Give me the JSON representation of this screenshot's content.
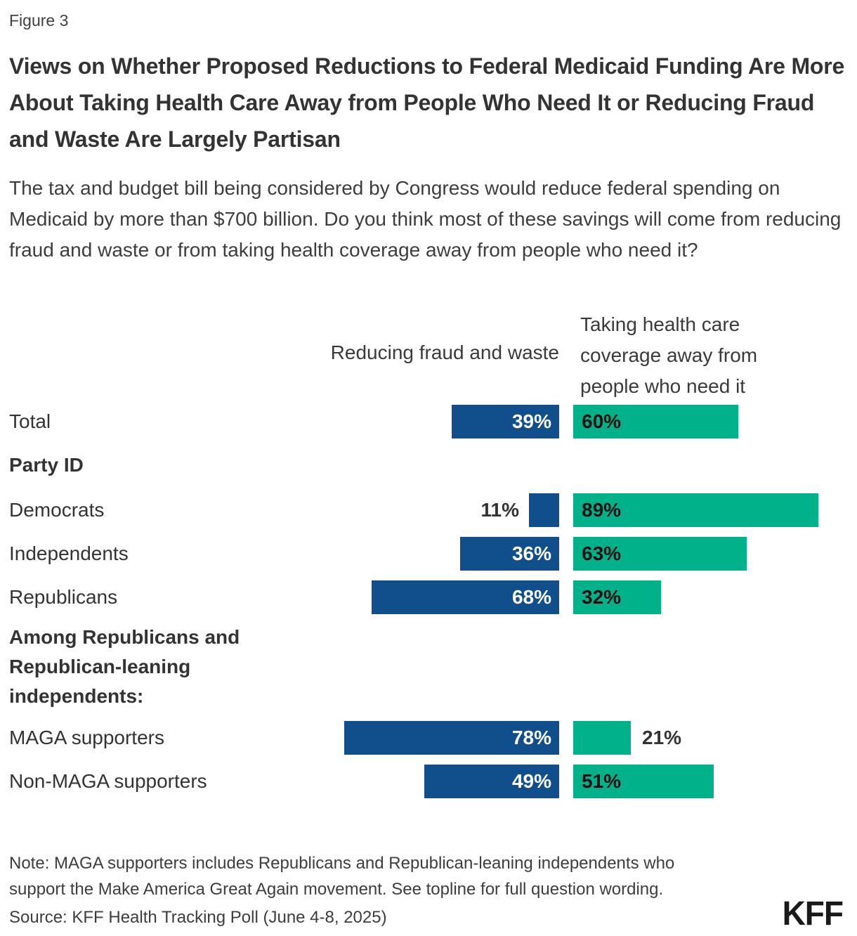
{
  "figure_label": "Figure 3",
  "title": "Views on Whether Proposed Reductions to Federal Medicaid Funding Are More About Taking Health Care Away from People Who Need It or Reducing Fraud and Waste Are Largely Partisan",
  "subtitle": "The tax and budget bill being considered by Congress would reduce federal spending on Medicaid by more than $700 billion. Do you think most of these savings will come from reducing fraud and waste or from taking health coverage away from people who need it?",
  "chart_data": {
    "type": "bar",
    "variant": "horizontal-diverging",
    "unit": "%",
    "legend_position": "top",
    "legend": {
      "left": "Reducing fraud and waste",
      "right": "Taking health care coverage away from people who need it"
    },
    "colors": {
      "fraud": "#114E8C",
      "coverage": "#00B189"
    },
    "sections": [
      {
        "label": "Party ID"
      },
      {
        "label": "Among Republicans and Republican-leaning independents:"
      }
    ],
    "rows": [
      {
        "label": "Total",
        "fraud": 39,
        "coverage": 60,
        "fraud_label": "inside",
        "coverage_label": "inside"
      },
      {
        "label": "Democrats",
        "fraud": 11,
        "coverage": 89,
        "fraud_label": "outside",
        "coverage_label": "inside"
      },
      {
        "label": "Independents",
        "fraud": 36,
        "coverage": 63,
        "fraud_label": "inside",
        "coverage_label": "inside"
      },
      {
        "label": "Republicans",
        "fraud": 68,
        "coverage": 32,
        "fraud_label": "inside",
        "coverage_label": "inside"
      },
      {
        "label": "MAGA supporters",
        "fraud": 78,
        "coverage": 21,
        "fraud_label": "inside",
        "coverage_label": "outside"
      },
      {
        "label": "Non-MAGA supporters",
        "fraud": 49,
        "coverage": 51,
        "fraud_label": "inside",
        "coverage_label": "inside"
      }
    ]
  },
  "note": "Note: MAGA supporters includes Republicans and Republican-leaning independents who support the Make America Great Again movement. See topline for full question wording.",
  "source": "Source: KFF Health Tracking Poll (June 4-8, 2025)",
  "logo": "KFF"
}
